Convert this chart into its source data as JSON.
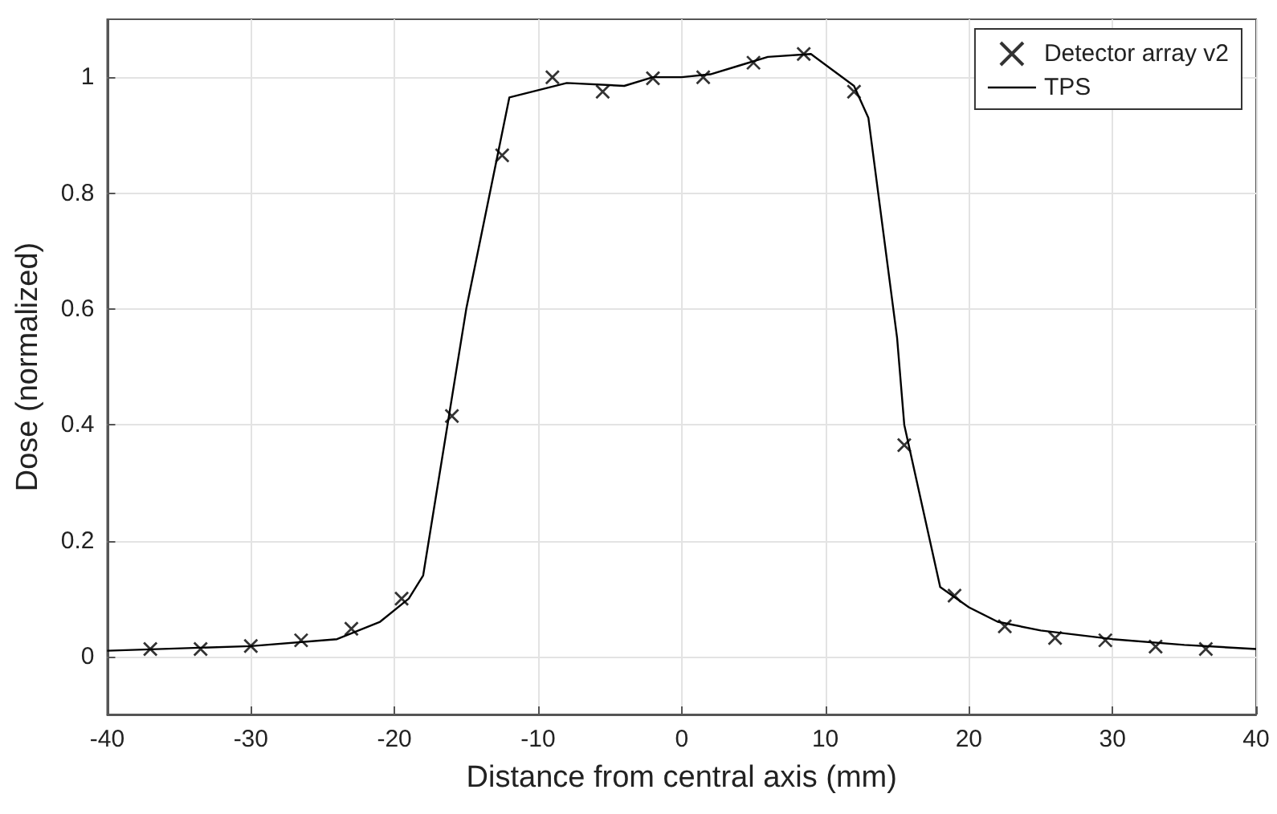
{
  "chart_data": {
    "type": "scatter",
    "xlabel": "Distance from central axis (mm)",
    "ylabel": "Dose (normalized)",
    "xlim": [
      -40,
      40
    ],
    "xticks": [
      -40,
      -30,
      -20,
      -10,
      0,
      10,
      20,
      30,
      40
    ],
    "ylim": [
      -0.1,
      1.1
    ],
    "yticks": [
      0,
      0.2,
      0.4,
      0.6,
      0.8,
      1
    ],
    "grid": true,
    "legend": "top right",
    "series": [
      {
        "name": "Detector array v2",
        "marker": "cross",
        "color": "#000000",
        "x": [
          -37,
          -33.5,
          -30,
          -26.5,
          -23,
          -19.5,
          -16,
          -12.5,
          -9,
          -5.5,
          -2,
          1.5,
          5,
          8.5,
          12,
          15.5,
          19,
          22.5,
          26,
          29.5,
          33,
          36.5
        ],
        "values": [
          0.013,
          0.013,
          0.018,
          0.028,
          0.048,
          0.1,
          0.415,
          0.865,
          1.0,
          0.975,
          0.998,
          1.0,
          1.025,
          1.04,
          0.975,
          0.365,
          0.105,
          0.052,
          0.032,
          0.028,
          0.017,
          0.013
        ]
      },
      {
        "name": "TPS",
        "type": "line",
        "marker": "none",
        "line_style": "solid",
        "color": "#000000",
        "x": [
          -40,
          -30,
          -24,
          -21,
          -19,
          -18,
          -15,
          -12,
          -8,
          -4,
          -2,
          0,
          2,
          4,
          6,
          9,
          12,
          13,
          15,
          15.5,
          18,
          20,
          22,
          25,
          30,
          35,
          40
        ],
        "values": [
          0.01,
          0.018,
          0.03,
          0.06,
          0.1,
          0.14,
          0.6,
          0.965,
          0.99,
          0.985,
          1.0,
          1.0,
          1.005,
          1.02,
          1.035,
          1.04,
          0.985,
          0.93,
          0.55,
          0.4,
          0.12,
          0.085,
          0.06,
          0.045,
          0.03,
          0.02,
          0.013
        ]
      }
    ]
  }
}
